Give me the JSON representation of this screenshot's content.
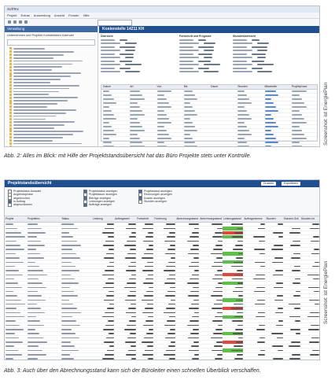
{
  "figure1": {
    "window_title": "SoftTec",
    "menu": [
      "Projekt",
      "Extras",
      "Auswertung",
      "Ansicht",
      "Fenster",
      "Hilfe"
    ],
    "sidebar_title": "Verwaltung",
    "sidebar_tabs": "Unternehmen und Projekte  Kontaktdaten  Kalender",
    "panel_title": "Kostenstelle 14211 KH",
    "sections": [
      "Übersicht",
      "Fortschritt und Prognose",
      "Stundenübersicht"
    ],
    "grid_headers": [
      "Datum",
      "Art",
      "Von",
      "Bis",
      "Dauer",
      "Stunden",
      "Mitarbeiter",
      "Projektphase"
    ],
    "grid_section_title": "Kosten und Leistungen"
  },
  "caption1": "Abb. 2: Alles im Blick: mit Hilfe der Projektstandsübersicht hat das Büro Projekte stets unter Kontrolle.",
  "credit1": "Screenshot: ist EnergiePlan",
  "figure2": {
    "title": "Projektstandsübersicht",
    "buttons": [
      "Drucken",
      "Exportieren"
    ],
    "filter_col1": [
      "Projektstatus Auswahl",
      "Angebotsphase",
      "abgebrochen",
      "in Auftrag",
      "abgeschlossen"
    ],
    "filter_col2": [
      "Projektstatus anzeigen",
      "Projektdauer anzeigen",
      "Beträge anzeigen",
      "Leistungen anzeigen",
      "Aufträge anzeigen"
    ],
    "filter_col3": [
      "Projektstand anzeigen",
      "Rechnungen anzeigen",
      "Kosten anzeigen",
      "Stunden anzeigen"
    ],
    "grid_headers": [
      "Projekt",
      "Projektbez.",
      "Status",
      "Leistung",
      "Auftragswert",
      "Fortschritt",
      "Forderung",
      "Abrechnungsstand",
      "Abrechnungsstand %",
      "Leistungsstand",
      "Auftragsreserve",
      "Stunden",
      "Stunden-Soll",
      "Stunden-Ist"
    ]
  },
  "caption2": "Abb. 3: Auch über den Abrechnungsstand kann sich der Büroleiter einen schnellen Überblick verschaffen.",
  "credit2": "Screenshot: ist EnergiePlan"
}
